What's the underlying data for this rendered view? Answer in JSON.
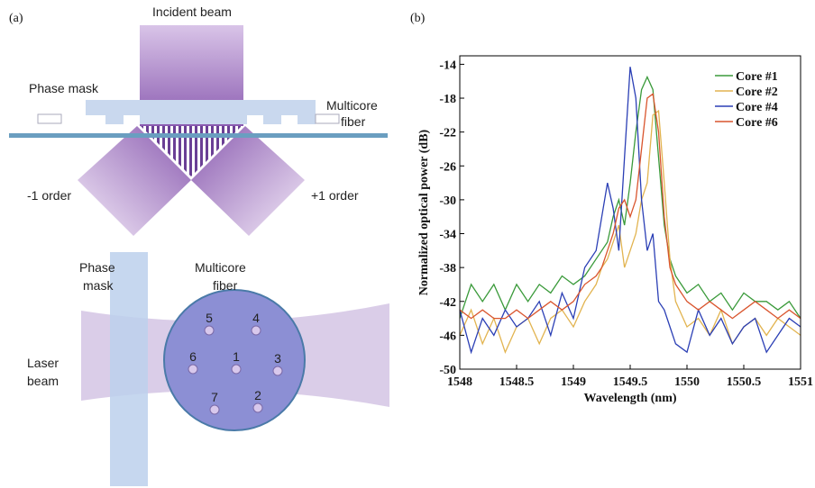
{
  "diagram": {
    "panel_a": "(a)",
    "panel_b": "(b)",
    "incident_beam": "Incident beam",
    "phase_mask_top": "Phase mask",
    "multicore_fiber_top": [
      "Multicore",
      "fiber"
    ],
    "minus_order": "-1 order",
    "plus_order": "+1 order",
    "phase_mask_bottom": [
      "Phase",
      "mask"
    ],
    "multicore_fiber_bottom": [
      "Multicore",
      "fiber"
    ],
    "laser_beam": [
      "Laser",
      "beam"
    ],
    "cores": [
      "5",
      "4",
      "6",
      "1",
      "3",
      "7",
      "2"
    ]
  },
  "chart_data": {
    "type": "line",
    "xlabel": "Wavelength (nm)",
    "ylabel": "Normalized optical power (dB)",
    "x": [
      1548,
      1548.1,
      1548.2,
      1548.3,
      1548.4,
      1548.5,
      1548.6,
      1548.7,
      1548.8,
      1548.9,
      1549,
      1549.1,
      1549.2,
      1549.25,
      1549.3,
      1549.35,
      1549.4,
      1549.45,
      1549.5,
      1549.55,
      1549.6,
      1549.65,
      1549.7,
      1549.75,
      1549.8,
      1549.85,
      1549.9,
      1550,
      1550.1,
      1550.2,
      1550.3,
      1550.4,
      1550.5,
      1550.6,
      1550.7,
      1550.8,
      1550.9,
      1551
    ],
    "series": [
      {
        "name": "Core #1",
        "color": "#3a9a3a",
        "values": [
          -44,
          -40,
          -42,
          -40,
          -43,
          -40,
          -42,
          -40,
          -41,
          -39,
          -40,
          -39,
          -37,
          -36,
          -35,
          -32,
          -30,
          -33,
          -28,
          -22,
          -17,
          -15.5,
          -17,
          -25,
          -33,
          -37,
          -39,
          -41,
          -40,
          -42,
          -41,
          -43,
          -41,
          -42,
          -42,
          -43,
          -42,
          -44
        ]
      },
      {
        "name": "Core #2",
        "color": "#e2b450",
        "values": [
          -46,
          -43,
          -47,
          -44,
          -48,
          -45,
          -44,
          -47,
          -44,
          -43,
          -45,
          -42,
          -40,
          -38,
          -37,
          -35,
          -33,
          -38,
          -36,
          -34,
          -30,
          -28,
          -20,
          -19.5,
          -28,
          -37,
          -42,
          -45,
          -44,
          -46,
          -43,
          -47,
          -45,
          -44,
          -46,
          -44,
          -45,
          -46
        ]
      },
      {
        "name": "Core #4",
        "color": "#2b3fb5",
        "values": [
          -43,
          -48,
          -44,
          -46,
          -43,
          -45,
          -44,
          -42,
          -46,
          -41,
          -44,
          -38,
          -36,
          -32,
          -28,
          -31,
          -36,
          -25,
          -14.3,
          -18,
          -30,
          -36,
          -34,
          -42,
          -43,
          -45,
          -47,
          -48,
          -43,
          -46,
          -44,
          -47,
          -45,
          -44,
          -48,
          -46,
          -44,
          -45
        ]
      },
      {
        "name": "Core #6",
        "color": "#d9552e",
        "values": [
          -43,
          -44,
          -43,
          -44,
          -44,
          -43,
          -44,
          -43,
          -42,
          -43,
          -42,
          -40,
          -39,
          -38,
          -36,
          -34,
          -31,
          -30,
          -32,
          -30,
          -24,
          -18,
          -17.5,
          -22,
          -32,
          -38,
          -40,
          -42,
          -43,
          -42,
          -43,
          -44,
          -43,
          -42,
          -43,
          -44,
          -43,
          -44
        ]
      }
    ],
    "xlim": [
      1548,
      1551
    ],
    "ylim": [
      -50,
      -13
    ],
    "xticks": [
      1548,
      1548.5,
      1549,
      1549.5,
      1550,
      1550.5,
      1551
    ],
    "yticks": [
      -50,
      -46,
      -42,
      -38,
      -34,
      -30,
      -26,
      -22,
      -18,
      -14
    ],
    "legend": "upper right"
  }
}
